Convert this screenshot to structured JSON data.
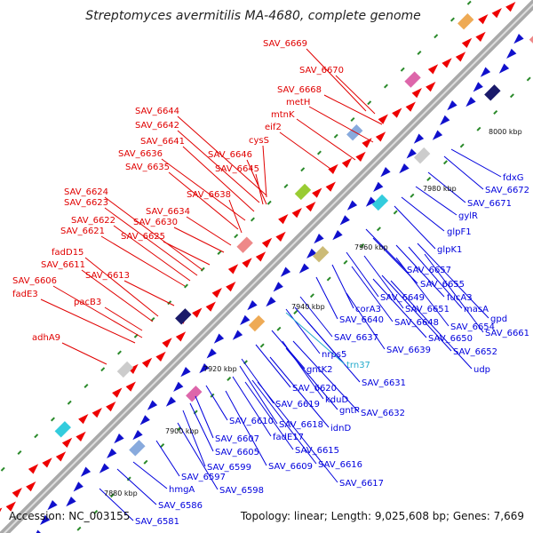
{
  "title": "Streptomyces avermitilis MA-4680, complete genome",
  "footer": {
    "accession": "Accession: NC_003155",
    "summary": "Topology: linear; Length: 9,025,608 bp; Genes: 7,669"
  },
  "colors": {
    "forward_label": "#e00000",
    "reverse_label": "#0000dd",
    "rna_label": "#22aacc",
    "forward_arrow": "#ee0000",
    "reverse_arrow": "#1010cc",
    "backbone": "#888888",
    "tick_marker": "#2a8a2a"
  },
  "ticks": [
    "7880 kbp",
    "7900 kbp",
    "7920 kbp",
    "7940 kbp",
    "7960 kbp",
    "7980 kbp",
    "8000 kbp"
  ],
  "forward_labels": [
    "SAV_6669",
    "SAV_6670",
    "SAV_6668",
    "metH",
    "mtnK",
    "SAV_6644",
    "eif2",
    "SAV_6642",
    "SAV_6641",
    "SAV_6646",
    "cysS",
    "SAV_6636",
    "SAV_6645",
    "SAV_6635",
    "SAV_6638",
    "SAV_6624",
    "SAV_6623",
    "SAV_6634",
    "SAV_6630",
    "SAV_6622",
    "SAV_6621",
    "SAV_6625",
    "fadD15",
    "SAV_6611",
    "SAV_6613",
    "SAV_6606",
    "fadE3",
    "pacB3",
    "adhA9"
  ],
  "reverse_labels": [
    "fdxG",
    "SAV_6672",
    "7980 kbp",
    "SAV_6671",
    "gylR",
    "glpF1",
    "glpK1",
    "SAV_6657",
    "SAV_6655",
    "fucA3",
    "SAV_6649",
    "corA3",
    "SAV_6651",
    "masA",
    "SAV_6640",
    "SAV_6648",
    "SAV_6654",
    "gpd",
    "SAV_6637",
    "SAV_6650",
    "SAV_6661",
    "nrps5",
    "SAV_6639",
    "SAV_6652",
    "trn37",
    "udp",
    "gntK2",
    "SAV_6631",
    "SAV_6620",
    "SAV_6619",
    "kduD",
    "gntP",
    "SAV_6632",
    "SAV_6618",
    "idnD",
    "SAV_6610",
    "fadE17",
    "SAV_6607",
    "SAV_6615",
    "SAV_6605",
    "SAV_6616",
    "SAV_6609",
    "SAV_6599",
    "SAV_6597",
    "SAV_6617",
    "SAV_6598",
    "hmgA",
    "SAV_6586",
    "SAV_6581"
  ]
}
